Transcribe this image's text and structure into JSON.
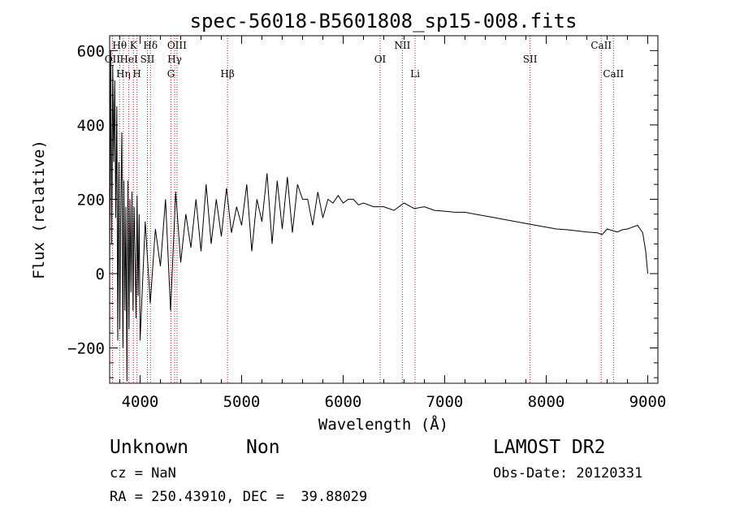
{
  "chart_data": {
    "type": "line",
    "title": "spec-56018-B5601808_sp15-008.fits",
    "xlabel": "Wavelength (Å)",
    "ylabel": "Flux (relative)",
    "xlim": [
      3700,
      9100
    ],
    "ylim": [
      -295,
      640
    ],
    "x_ticks": [
      4000,
      5000,
      6000,
      7000,
      8000,
      9000
    ],
    "y_ticks": [
      -200,
      0,
      200,
      400,
      600
    ],
    "grid": false,
    "series": [
      {
        "x": [
          3700,
          3710,
          3720,
          3730,
          3740,
          3750,
          3760,
          3770,
          3780,
          3790,
          3800,
          3810,
          3820,
          3830,
          3840,
          3850,
          3860,
          3870,
          3880,
          3890,
          3900,
          3910,
          3920,
          3930,
          3940,
          3950,
          3960,
          3970,
          3980,
          3990,
          4000,
          4050,
          4100,
          4150,
          4200,
          4250,
          4300,
          4350,
          4400,
          4450,
          4500,
          4550,
          4600,
          4650,
          4700,
          4750,
          4800,
          4850,
          4900,
          4950,
          5000,
          5050,
          5100,
          5150,
          5200,
          5250,
          5300,
          5350,
          5400,
          5450,
          5500,
          5550,
          5600,
          5650,
          5700,
          5750,
          5800,
          5850,
          5900,
          5950,
          6000,
          6050,
          6100,
          6150,
          6200,
          6300,
          6400,
          6500,
          6600,
          6700,
          6800,
          6900,
          7000,
          7100,
          7200,
          7300,
          7400,
          7500,
          7600,
          7700,
          7800,
          7900,
          8000,
          8100,
          8200,
          8300,
          8400,
          8500,
          8550,
          8600,
          8700,
          8750,
          8800,
          8850,
          8900,
          8950,
          8980,
          9000
        ],
        "y": [
          0,
          600,
          80,
          560,
          300,
          520,
          150,
          450,
          -180,
          300,
          -150,
          200,
          380,
          -200,
          250,
          -100,
          180,
          -290,
          250,
          -150,
          200,
          -50,
          220,
          -100,
          180,
          50,
          -120,
          210,
          -60,
          160,
          -180,
          140,
          -80,
          120,
          20,
          200,
          -100,
          220,
          30,
          160,
          70,
          200,
          60,
          240,
          80,
          200,
          100,
          230,
          110,
          180,
          130,
          240,
          60,
          200,
          140,
          270,
          80,
          250,
          120,
          260,
          110,
          240,
          200,
          200,
          130,
          220,
          150,
          200,
          190,
          210,
          190,
          200,
          200,
          185,
          190,
          180,
          180,
          170,
          190,
          175,
          180,
          170,
          168,
          165,
          165,
          160,
          155,
          150,
          145,
          140,
          135,
          130,
          125,
          120,
          118,
          115,
          112,
          110,
          105,
          120,
          112,
          118,
          120,
          125,
          130,
          110,
          60,
          0
        ]
      }
    ],
    "lines": [
      {
        "label": "OII",
        "wl": 3727,
        "row": 1
      },
      {
        "label": "Hθ",
        "wl": 3798,
        "row": 0
      },
      {
        "label": "Hη",
        "wl": 3835,
        "row": 2
      },
      {
        "label": "K",
        "wl": 3934,
        "row": 0
      },
      {
        "label": "H",
        "wl": 3969,
        "row": 2
      },
      {
        "label": "HeI",
        "wl": 3889,
        "row": 1
      },
      {
        "label": "Hδ",
        "wl": 4102,
        "row": 0
      },
      {
        "label": "SII",
        "wl": 4072,
        "row": 1
      },
      {
        "label": "G",
        "wl": 4304,
        "row": 2
      },
      {
        "label": "Hγ",
        "wl": 4340,
        "row": 1
      },
      {
        "label": "OIII",
        "wl": 4363,
        "row": 0
      },
      {
        "label": "Hβ",
        "wl": 4861,
        "row": 2
      },
      {
        "label": "OI",
        "wl": 6364,
        "row": 1
      },
      {
        "label": "NII",
        "wl": 6583,
        "row": 0
      },
      {
        "label": "Li",
        "wl": 6708,
        "row": 2
      },
      {
        "label": "SII",
        "wl": 7841,
        "row": 1
      },
      {
        "label": "CaII",
        "wl": 8542,
        "row": 0
      },
      {
        "label": "CaII",
        "wl": 8662,
        "row": 2
      }
    ]
  },
  "info": {
    "class": "Unknown",
    "subclass": "Non",
    "survey": "LAMOST DR2",
    "cz": "cz = NaN",
    "obs_date": "Obs-Date: 20120331",
    "radec": "RA = 250.43910, DEC =  39.88029"
  }
}
